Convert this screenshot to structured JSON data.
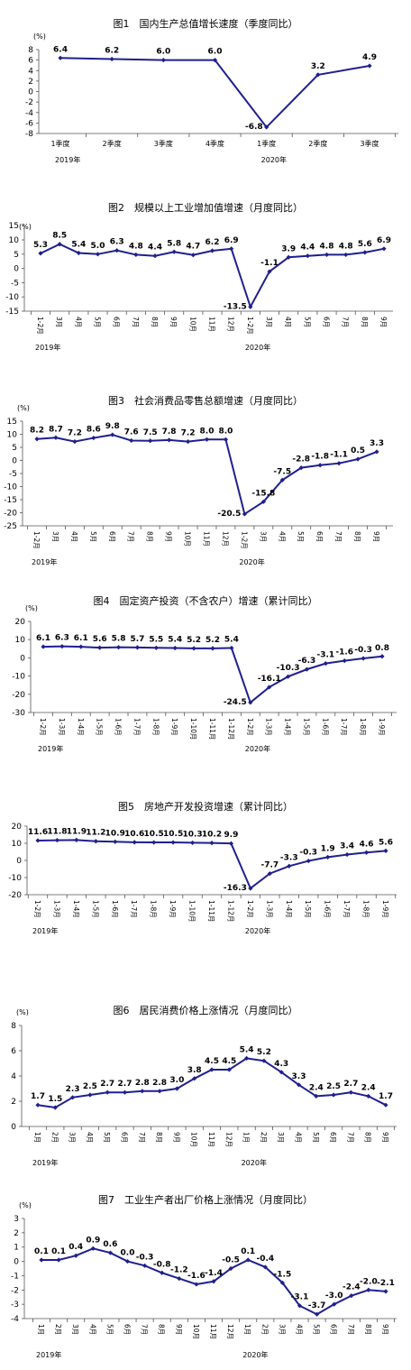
{
  "chart_data": [
    {
      "type": "line",
      "title": "图1　国内生产总值增长速度（季度同比）",
      "unit": "(%)",
      "ylim": [
        -8,
        8
      ],
      "yticks": [
        -8,
        -6,
        -4,
        -2,
        0,
        2,
        4,
        6,
        8
      ],
      "categories": [
        "1季度",
        "2季度",
        "3季度",
        "4季度",
        "1季度",
        "2季度",
        "3季度"
      ],
      "values": [
        6.4,
        6.2,
        6.0,
        6.0,
        -6.8,
        3.2,
        4.9
      ],
      "year_groups": [
        {
          "label": "2019年",
          "start": 0
        },
        {
          "label": "2020年",
          "start": 4
        }
      ],
      "vertical_ticks": false
    },
    {
      "type": "line",
      "title": "图2　规模以上工业增加值增速（月度同比）",
      "unit": "(%)",
      "ylim": [
        -15,
        10
      ],
      "yticks": [
        -15,
        -10,
        -5,
        0,
        5,
        10,
        15
      ],
      "categories": [
        "1-2月",
        "3月",
        "4月",
        "5月",
        "6月",
        "7月",
        "8月",
        "9月",
        "10月",
        "11月",
        "12月",
        "1-2月",
        "3月",
        "4月",
        "5月",
        "6月",
        "7月",
        "8月",
        "9月"
      ],
      "values": [
        5.3,
        8.5,
        5.4,
        5.0,
        6.3,
        4.8,
        4.4,
        5.8,
        4.7,
        6.2,
        6.9,
        -13.5,
        -1.1,
        3.9,
        4.4,
        4.8,
        4.8,
        5.6,
        6.9
      ],
      "year_groups": [
        {
          "label": "2019年",
          "start": 0
        },
        {
          "label": "2020年",
          "start": 11
        }
      ],
      "vertical_ticks": true
    },
    {
      "type": "line",
      "title": "图3　社会消费品零售总额增速（月度同比）",
      "unit": "(%)",
      "ylim": [
        -25,
        15
      ],
      "yticks": [
        -25,
        -20,
        -15,
        -10,
        -5,
        0,
        5,
        10,
        15
      ],
      "categories": [
        "1-2月",
        "3月",
        "4月",
        "5月",
        "6月",
        "7月",
        "8月",
        "9月",
        "10月",
        "11月",
        "12月",
        "1-2月",
        "3月",
        "4月",
        "5月",
        "6月",
        "7月",
        "8月",
        "9月"
      ],
      "values": [
        8.2,
        8.7,
        7.2,
        8.6,
        9.8,
        7.6,
        7.5,
        7.8,
        7.2,
        8.0,
        8.0,
        -20.5,
        -15.8,
        -7.5,
        -2.8,
        -1.8,
        -1.1,
        0.5,
        3.3
      ],
      "year_groups": [
        {
          "label": "2019年",
          "start": 0
        },
        {
          "label": "2020年",
          "start": 11
        }
      ],
      "vertical_ticks": true
    },
    {
      "type": "line",
      "title": "图4　固定资产投资（不含农户）增速（累计同比）",
      "unit": "(%)",
      "ylim": [
        -30,
        20
      ],
      "yticks": [
        -30,
        -20,
        -10,
        0,
        10,
        20
      ],
      "categories": [
        "1-2月",
        "1-3月",
        "1-4月",
        "1-5月",
        "1-6月",
        "1-7月",
        "1-8月",
        "1-9月",
        "1-10月",
        "1-11月",
        "1-12月",
        "1-2月",
        "1-3月",
        "1-4月",
        "1-5月",
        "1-6月",
        "1-7月",
        "1-8月",
        "1-9月"
      ],
      "values": [
        6.1,
        6.3,
        6.1,
        5.6,
        5.8,
        5.7,
        5.5,
        5.4,
        5.2,
        5.2,
        5.4,
        -24.5,
        -16.1,
        -10.3,
        -6.3,
        -3.1,
        -1.6,
        -0.3,
        0.8
      ],
      "year_groups": [
        {
          "label": "2019年",
          "start": 0
        },
        {
          "label": "2020年",
          "start": 11
        }
      ],
      "vertical_ticks": true
    },
    {
      "type": "line",
      "title": "图5　房地产开发投资增速（累计同比）",
      "unit": "",
      "ylim": [
        -20,
        20
      ],
      "yticks": [
        -20,
        -10,
        0,
        10,
        20
      ],
      "categories": [
        "1-2月",
        "1-3月",
        "1-4月",
        "1-5月",
        "1-6月",
        "1-7月",
        "1-8月",
        "1-9月",
        "1-10月",
        "1-11月",
        "1-12月",
        "1-2月",
        "1-3月",
        "1-4月",
        "1-5月",
        "1-6月",
        "1-7月",
        "1-8月",
        "1-9月"
      ],
      "values": [
        11.6,
        11.8,
        11.9,
        11.2,
        10.9,
        10.6,
        10.5,
        10.5,
        10.3,
        10.2,
        9.9,
        -16.3,
        -7.7,
        -3.3,
        -0.3,
        1.9,
        3.4,
        4.6,
        5.6
      ],
      "year_groups": [
        {
          "label": "2019年",
          "start": 0
        },
        {
          "label": "2020年",
          "start": 11
        }
      ],
      "vertical_ticks": true
    },
    {
      "type": "line",
      "title": "图6　居民消费价格上涨情况（月度同比）",
      "unit": "(%)",
      "ylim": [
        0,
        8
      ],
      "yticks": [
        0,
        2,
        4,
        6,
        8
      ],
      "categories": [
        "1月",
        "2月",
        "3月",
        "4月",
        "5月",
        "6月",
        "7月",
        "8月",
        "9月",
        "10月",
        "11月",
        "12月",
        "1月",
        "2月",
        "3月",
        "4月",
        "5月",
        "6月",
        "7月",
        "8月",
        "9月"
      ],
      "values": [
        1.7,
        1.5,
        2.3,
        2.5,
        2.7,
        2.7,
        2.8,
        2.8,
        3.0,
        3.8,
        4.5,
        4.5,
        5.4,
        5.2,
        4.3,
        3.3,
        2.4,
        2.5,
        2.7,
        2.4,
        1.7
      ],
      "year_groups": [
        {
          "label": "2019年",
          "start": 0
        },
        {
          "label": "2020年",
          "start": 12
        }
      ],
      "vertical_ticks": true
    },
    {
      "type": "line",
      "title": "图7　工业生产者出厂价格上涨情况（月度同比）",
      "unit": "(%)",
      "ylim": [
        -4,
        3
      ],
      "yticks": [
        -4,
        -3,
        -2,
        -1,
        0,
        1,
        2,
        3
      ],
      "categories": [
        "1月",
        "2月",
        "3月",
        "4月",
        "5月",
        "6月",
        "7月",
        "8月",
        "9月",
        "10月",
        "11月",
        "12月",
        "1月",
        "2月",
        "3月",
        "4月",
        "5月",
        "6月",
        "7月",
        "8月",
        "9月"
      ],
      "values": [
        0.1,
        0.1,
        0.4,
        0.9,
        0.6,
        0.0,
        -0.3,
        -0.8,
        -1.2,
        -1.6,
        -1.4,
        -0.5,
        0.1,
        -0.4,
        -1.5,
        -3.1,
        -3.7,
        -3.0,
        -2.4,
        -2.0,
        -2.1
      ],
      "year_groups": [
        {
          "label": "2019年",
          "start": 0
        },
        {
          "label": "2020年",
          "start": 12
        }
      ],
      "vertical_ticks": true
    }
  ],
  "colors": {
    "line": "#1f1f8f",
    "axis": "#555555",
    "text": "#000000"
  }
}
